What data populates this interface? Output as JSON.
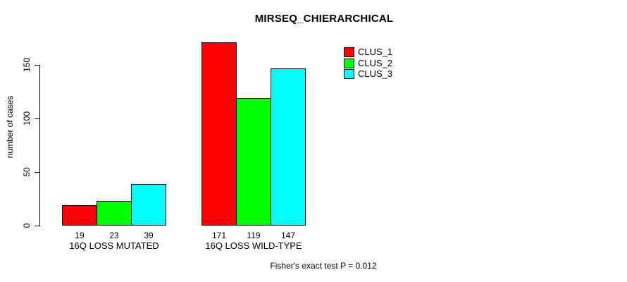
{
  "chart_data": {
    "type": "bar",
    "title": "MIRSEQ_CHIERARCHICAL",
    "ylabel": "number of cases",
    "xlabel": "",
    "categories": [
      "16Q LOSS MUTATED",
      "16Q LOSS WILD-TYPE"
    ],
    "series": [
      {
        "name": "CLUS_1",
        "color": "#ff0000",
        "values": [
          19,
          171
        ]
      },
      {
        "name": "CLUS_2",
        "color": "#00ff00",
        "values": [
          23,
          119
        ]
      },
      {
        "name": "CLUS_3",
        "color": "#00ffff",
        "values": [
          39,
          147
        ]
      }
    ],
    "yticks": [
      0,
      50,
      100,
      150
    ],
    "ylim": [
      0,
      175
    ],
    "grid": false,
    "legend_position": "topright",
    "bar_value_labels": true,
    "annotation": "Fisher's exact test P = 0.012"
  }
}
